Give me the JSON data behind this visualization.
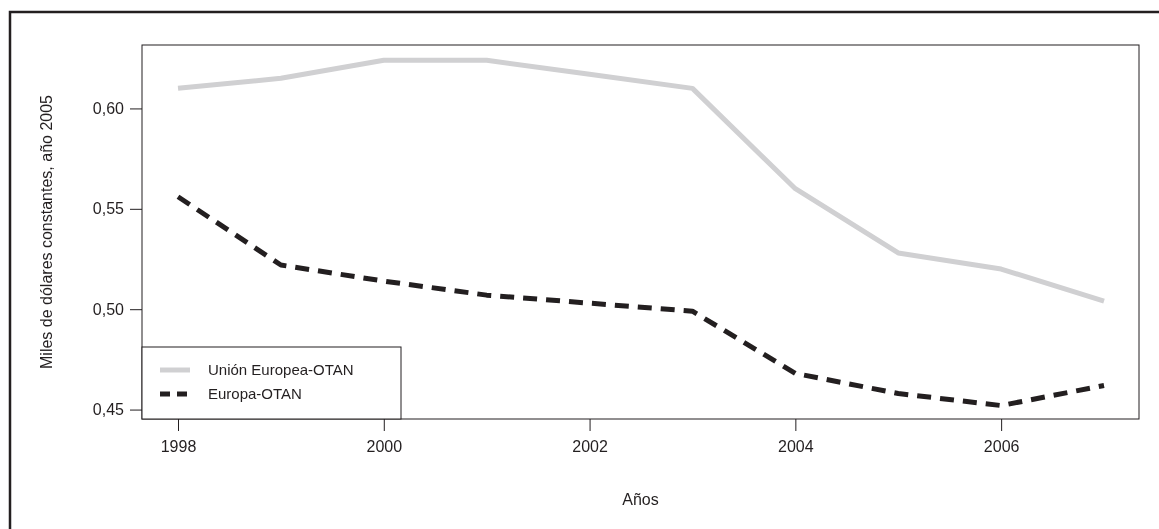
{
  "chart_data": {
    "type": "line",
    "xlabel": "Años",
    "ylabel": "Miles de dólares constantes, año 2005",
    "x": [
      1998,
      1999,
      2000,
      2001,
      2002,
      2003,
      2004,
      2005,
      2006,
      2007
    ],
    "series": [
      {
        "name": "Unión Europea-OTAN",
        "color": "#d0d0d2",
        "line_style": "solid",
        "values": [
          0.61,
          0.615,
          0.624,
          0.624,
          0.617,
          0.61,
          0.56,
          0.528,
          0.52,
          0.504
        ]
      },
      {
        "name": "Europa-OTAN",
        "color": "#231f20",
        "line_style": "dashed",
        "values": [
          0.556,
          0.522,
          0.514,
          0.507,
          0.503,
          0.499,
          0.468,
          0.458,
          0.452,
          0.462
        ]
      }
    ],
    "xlim": [
      1997.65,
      2007.34
    ],
    "xticks": [
      1998,
      2000,
      2002,
      2004,
      2006
    ],
    "ylim": [
      0.4453,
      0.6316
    ],
    "yticks": [
      {
        "value": 0.45,
        "label": "0,45"
      },
      {
        "value": 0.5,
        "label": "0,50"
      },
      {
        "value": 0.55,
        "label": "0,55"
      },
      {
        "value": 0.6,
        "label": "0,60"
      }
    ],
    "grid": false,
    "legend": "bottom left",
    "marker": "none"
  }
}
